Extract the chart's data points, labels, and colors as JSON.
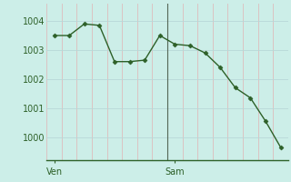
{
  "x": [
    0,
    1,
    2,
    3,
    4,
    5,
    6,
    7,
    8,
    9,
    10,
    11,
    12,
    13,
    14,
    15
  ],
  "y": [
    1003.5,
    1003.5,
    1003.9,
    1003.85,
    1002.6,
    1002.6,
    1002.65,
    1003.5,
    1003.2,
    1003.15,
    1002.9,
    1002.4,
    1001.7,
    1001.35,
    1000.55,
    999.65
  ],
  "ven_x": 0,
  "sam_x": 8,
  "vline_x": 7.5,
  "line_color": "#2d6028",
  "marker": "D",
  "marker_size": 2.5,
  "bg_color": "#cceee8",
  "grid_h_color": "#b8d8d8",
  "grid_v_color": "#ddbcbc",
  "yticks": [
    1000,
    1001,
    1002,
    1003,
    1004
  ],
  "ylim": [
    999.2,
    1004.6
  ],
  "xlim": [
    -0.5,
    15.5
  ],
  "n_vcols": 16,
  "xlabel_ven": "Ven",
  "xlabel_sam": "Sam",
  "tick_color": "#2d6028",
  "label_fontsize": 7,
  "vline_color": "#556655",
  "bottom_spine_color": "#2d6028"
}
